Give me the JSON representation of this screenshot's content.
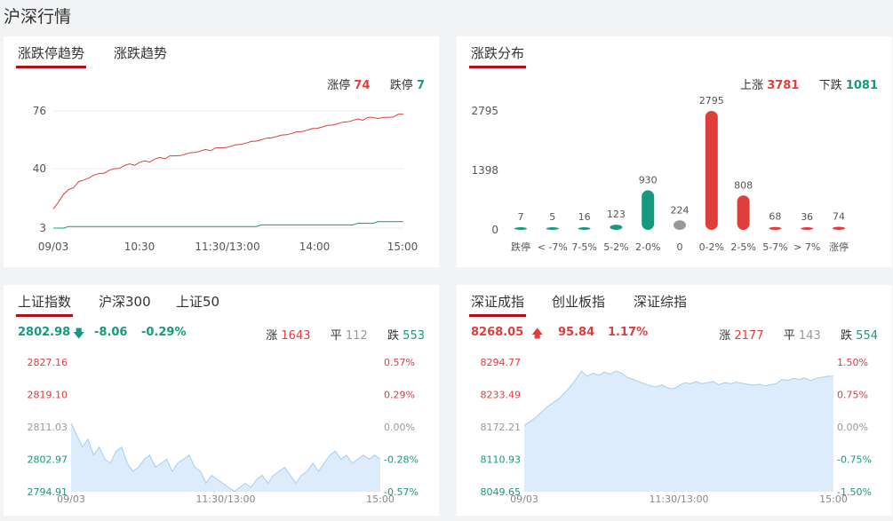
{
  "page": {
    "title": "沪深行情"
  },
  "colors": {
    "up": "#e03d3d",
    "down": "#159a80",
    "flat": "#999999",
    "accent": "#b30f18",
    "area": "#dcecfb",
    "area_line": "#a9cdef"
  },
  "limit_card": {
    "tabs": [
      "涨跌停趋势",
      "涨跌趋势"
    ],
    "active_tab": 0,
    "limit_up_label": "涨停",
    "limit_up_value": "74",
    "limit_down_label": "跌停",
    "limit_down_value": "7"
  },
  "dist_card": {
    "tabs": [
      "涨跌分布"
    ],
    "up_label": "上涨",
    "up_value": "3781",
    "down_label": "下跌",
    "down_value": "1081"
  },
  "sh_card": {
    "tabs": [
      "上证指数",
      "沪深300",
      "上证50"
    ],
    "price": "2802.98",
    "change": "-8.06",
    "change_pct": "-0.29%",
    "rise_label": "涨",
    "rise_count": "1643",
    "flat_label": "平",
    "flat_count": "112",
    "fall_label": "跌",
    "fall_count": "553"
  },
  "sz_card": {
    "tabs": [
      "深证成指",
      "创业板指",
      "深证综指"
    ],
    "price": "8268.05",
    "change": "95.84",
    "change_pct": "1.17%",
    "rise_label": "涨",
    "rise_count": "2177",
    "flat_label": "平",
    "flat_count": "143",
    "fall_label": "跌",
    "fall_count": "554"
  },
  "chart_data": [
    {
      "type": "line",
      "x_labels": [
        "09/03",
        "10:30",
        "11:30/13:00",
        "14:00",
        "15:00"
      ],
      "y_ticks": [
        "3",
        "40",
        "76"
      ],
      "ylim": [
        3,
        76
      ],
      "grid": true,
      "series": [
        {
          "name": "涨停",
          "color": "#e03d3d",
          "values": [
            15,
            20,
            24,
            27,
            29,
            32,
            33,
            35,
            36,
            37,
            38,
            39,
            40,
            41,
            42,
            43,
            43,
            44,
            45,
            45,
            46,
            47,
            47,
            48,
            48,
            49,
            49,
            50,
            51,
            51,
            52,
            52,
            53,
            53,
            54,
            54,
            55,
            56,
            56,
            57,
            58,
            58,
            59,
            60,
            60,
            61,
            62,
            62,
            63,
            64,
            64,
            65,
            66,
            66,
            67,
            68,
            68,
            69,
            70,
            70,
            71,
            71,
            72,
            72,
            72,
            72,
            72,
            73,
            74,
            74
          ]
        },
        {
          "name": "跌停",
          "color": "#159a80",
          "values": [
            3,
            3,
            3,
            4,
            4,
            4,
            4,
            4,
            4,
            4,
            4,
            4,
            4,
            4,
            4,
            4,
            4,
            4,
            4,
            4,
            4,
            4,
            4,
            4,
            4,
            4,
            4,
            4,
            4,
            4,
            4,
            4,
            4,
            4,
            4,
            4,
            4,
            4,
            4,
            4,
            4,
            5,
            5,
            5,
            5,
            5,
            5,
            5,
            5,
            5,
            5,
            5,
            5,
            5,
            5,
            5,
            5,
            5,
            5,
            5,
            6,
            6,
            6,
            6,
            7,
            7,
            7,
            7,
            7,
            7
          ]
        }
      ]
    },
    {
      "type": "bar",
      "categories": [
        "跌停",
        "< -7%",
        "7-5%",
        "5-2%",
        "2-0%",
        "0",
        "0-2%",
        "2-5%",
        "5-7%",
        "> 7%",
        "涨停"
      ],
      "values": [
        7,
        5,
        16,
        123,
        930,
        224,
        2795,
        808,
        68,
        36,
        74
      ],
      "value_labels": [
        "7",
        "5",
        "16",
        "123",
        "930",
        "224",
        "2795",
        "808",
        "68",
        "36",
        "74"
      ],
      "y_ticks": [
        "0",
        "1398",
        "2795"
      ],
      "ylim": [
        0,
        2795
      ],
      "bar_colors": [
        "#159a80",
        "#159a80",
        "#159a80",
        "#159a80",
        "#159a80",
        "#999999",
        "#e03d3d",
        "#e03d3d",
        "#e03d3d",
        "#e03d3d",
        "#e03d3d"
      ]
    },
    {
      "type": "area",
      "x_labels": [
        "09/03",
        "11:30/13:00",
        "15:00"
      ],
      "y_ticks_left": [
        "2827.16",
        "2819.10",
        "2811.03",
        "2802.97",
        "2794.91"
      ],
      "y_ticks_right": [
        "0.57%",
        "0.29%",
        "0.00%",
        "-0.28%",
        "-0.57%"
      ],
      "ylim": [
        2794.91,
        2827.16
      ],
      "values": [
        2812,
        2809,
        2806,
        2808,
        2804,
        2806,
        2803,
        2802,
        2805,
        2806,
        2802,
        2800,
        2801,
        2803,
        2804,
        2801,
        2802,
        2803,
        2800,
        2802,
        2803,
        2804,
        2801,
        2800,
        2797,
        2799,
        2798,
        2797,
        2796,
        2795,
        2796,
        2797,
        2796,
        2798,
        2799,
        2797,
        2799,
        2800,
        2801,
        2799,
        2797,
        2799,
        2800,
        2802,
        2800,
        2802,
        2804,
        2805,
        2803,
        2804,
        2802,
        2803,
        2804,
        2803,
        2804,
        2803
      ]
    },
    {
      "type": "area",
      "x_labels": [
        "09/03",
        "11:30/13:00",
        "15:00"
      ],
      "y_ticks_left": [
        "8294.77",
        "8233.49",
        "8172.21",
        "8110.93",
        "8049.65"
      ],
      "y_ticks_right": [
        "1.50%",
        "0.75%",
        "0.00%",
        "-0.75%",
        "-1.50%"
      ],
      "ylim": [
        8049.65,
        8294.77
      ],
      "values": [
        8175,
        8182,
        8190,
        8200,
        8210,
        8218,
        8225,
        8236,
        8248,
        8262,
        8278,
        8268,
        8274,
        8270,
        8276,
        8272,
        8278,
        8274,
        8266,
        8262,
        8258,
        8254,
        8250,
        8248,
        8252,
        8246,
        8244,
        8250,
        8256,
        8254,
        8258,
        8254,
        8256,
        8258,
        8252,
        8256,
        8254,
        8257,
        8255,
        8253,
        8251,
        8253,
        8250,
        8252,
        8254,
        8262,
        8260,
        8264,
        8262,
        8265,
        8260,
        8264,
        8266,
        8268,
        8268
      ]
    }
  ]
}
